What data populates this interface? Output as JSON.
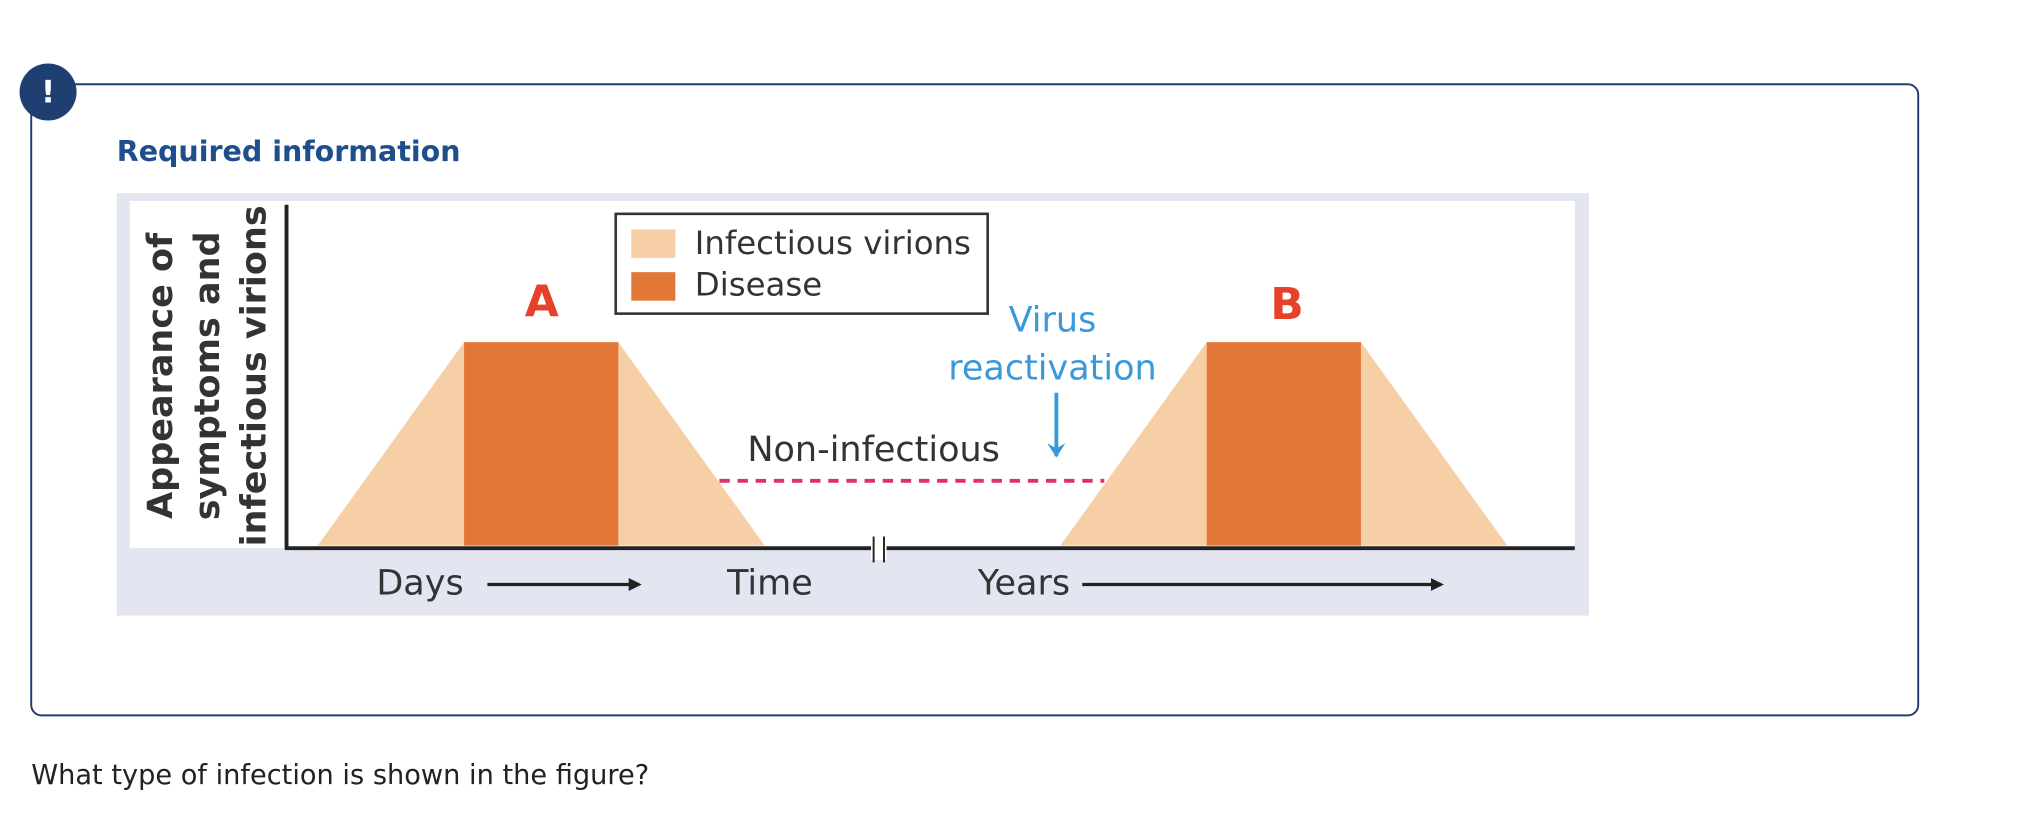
{
  "header": {
    "badge": "!",
    "title": "Required information"
  },
  "figure": {
    "y_axis_label": [
      "Appearance of",
      "symptoms and",
      "infectious virions"
    ],
    "legend": [
      "Infectious virions",
      "Disease"
    ],
    "peak_labels": [
      "A",
      "B"
    ],
    "annotations": {
      "reactivation": [
        "Virus",
        "reactivation"
      ],
      "non_infectious": "Non-infectious"
    },
    "x_labels": [
      "Days",
      "Time",
      "Years"
    ]
  },
  "question": "What type of infection is shown in the figure?"
}
